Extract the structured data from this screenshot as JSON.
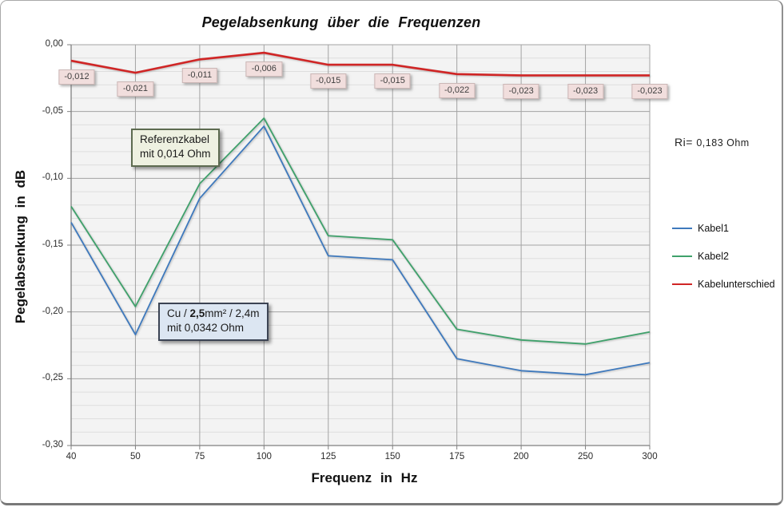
{
  "chart_data": {
    "type": "line",
    "title": "Pegelabsenkung über die Frequenzen",
    "xlabel": "Frequenz in Hz",
    "ylabel": "Pegelabsenkung in dB",
    "categories": [
      "40",
      "50",
      "75",
      "100",
      "125",
      "150",
      "175",
      "200",
      "250",
      "300"
    ],
    "y_ticks": [
      "0,00",
      "-0,05",
      "-0,10",
      "-0,15",
      "-0,20",
      "-0,25",
      "-0,30"
    ],
    "ylim": [
      -0.3,
      0
    ],
    "grid": "horizontal major+minor, vertical major",
    "legend_position": "right",
    "series": [
      {
        "name": "Kabel1",
        "color": "#3e79bd",
        "values": [
          -0.133,
          -0.217,
          -0.115,
          -0.061,
          -0.158,
          -0.161,
          -0.235,
          -0.244,
          -0.247,
          -0.238
        ]
      },
      {
        "name": "Kabel2",
        "color": "#3fa16b",
        "values": [
          -0.121,
          -0.196,
          -0.104,
          -0.055,
          -0.143,
          -0.146,
          -0.213,
          -0.221,
          -0.224,
          -0.215
        ]
      },
      {
        "name": "Kabelunterschied",
        "color": "#d02525",
        "values": [
          -0.012,
          -0.021,
          -0.011,
          -0.006,
          -0.015,
          -0.015,
          -0.022,
          -0.023,
          -0.023,
          -0.023
        ],
        "data_labels": [
          "-0,012",
          "-0,021",
          "-0,011",
          "-0,006",
          "-0,015",
          "-0,015",
          "-0,022",
          "-0,023",
          "-0,023",
          "-0,023"
        ]
      }
    ],
    "annotations": {
      "reference": {
        "line1": "Referenzkabel",
        "line2": "mit 0,014 Ohm"
      },
      "cu": {
        "pre": "Cu / ",
        "bold": "2,5",
        "post": "mm² / 2,4m",
        "line2": "mit 0,0342 Ohm"
      }
    },
    "ri_label": {
      "prefix": "Ri=",
      "value": "0,183 Ohm"
    }
  }
}
